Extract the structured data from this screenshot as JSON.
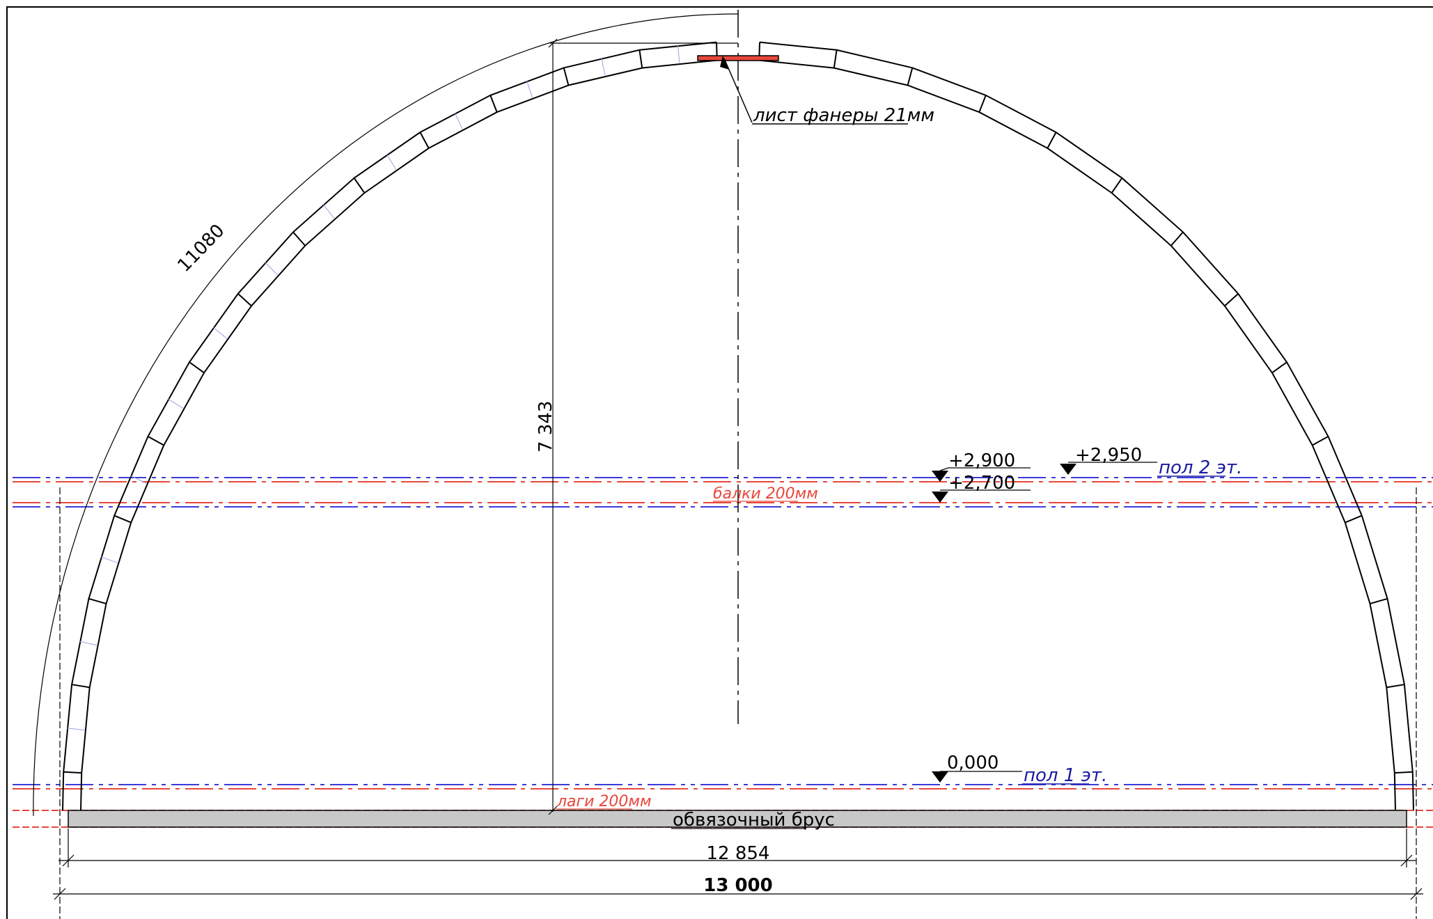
{
  "annotations": {
    "plywood": "лист фанеры 21мм",
    "beams": "балки 200мм",
    "joists": "лаги 200мм",
    "sill_beam": "обвязочный брус",
    "floor1": "пол 1 эт.",
    "floor2": "пол 2 эт."
  },
  "dimensions": {
    "arc_length": "11080",
    "height": "7 343",
    "inner_width": "12 854",
    "outer_width": "13 000"
  },
  "levels": {
    "l0": "0,000",
    "l2700": "+2,700",
    "l2900": "+2,900",
    "l2950": "+2,950"
  },
  "colors": {
    "line": "#000000",
    "red_axis": "#e8473b",
    "blue_axis": "#3b3bd8",
    "sill_fill": "#c8c8c8",
    "label_blue": "#1a1aa0"
  }
}
